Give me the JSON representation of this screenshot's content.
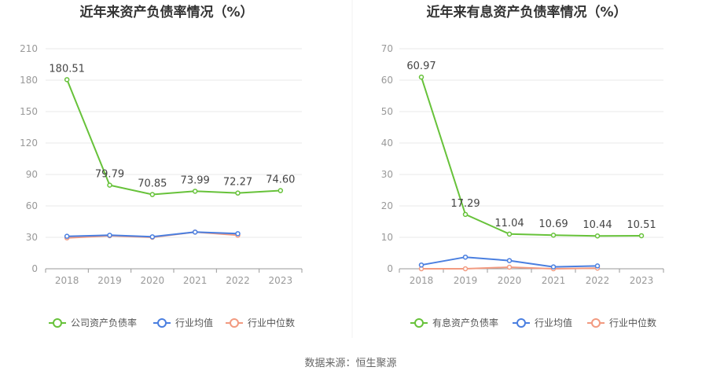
{
  "footer": {
    "source": "数据来源：恒生聚源"
  },
  "chart_data": [
    {
      "type": "line",
      "title": "近年来资产负债率情况（%）",
      "x": [
        "2018",
        "2019",
        "2020",
        "2021",
        "2022",
        "2023"
      ],
      "yticks": [
        "0",
        "30",
        "60",
        "90",
        "120",
        "150",
        "180",
        "210"
      ],
      "ylim": [
        0,
        210
      ],
      "grid": true,
      "legend_placement": "bottom",
      "series": [
        {
          "name": "公司资产负债率",
          "color": "#67c23a",
          "values": [
            180.51,
            79.79,
            70.85,
            73.99,
            72.27,
            74.6
          ],
          "labels": [
            "180.51",
            "79.79",
            "70.85",
            "73.99",
            "72.27",
            "74.60"
          ]
        },
        {
          "name": "行业均值",
          "color": "#4a7fe0",
          "values": [
            31.0,
            32.0,
            30.5,
            35.0,
            33.5,
            null
          ],
          "labels": []
        },
        {
          "name": "行业中位数",
          "color": "#f29a80",
          "values": [
            29.5,
            31.5,
            30.0,
            35.0,
            32.0,
            null
          ],
          "labels": []
        }
      ]
    },
    {
      "type": "line",
      "title": "近年来有息资产负债率情况（%）",
      "x": [
        "2018",
        "2019",
        "2020",
        "2021",
        "2022",
        "2023"
      ],
      "yticks": [
        "0",
        "10",
        "20",
        "30",
        "40",
        "50",
        "60",
        "70"
      ],
      "ylim": [
        0,
        70
      ],
      "grid": true,
      "legend_placement": "bottom",
      "series": [
        {
          "name": "有息资产负债率",
          "color": "#67c23a",
          "values": [
            60.97,
            17.29,
            11.04,
            10.69,
            10.44,
            10.51
          ],
          "labels": [
            "60.97",
            "17.29",
            "11.04",
            "10.69",
            "10.44",
            "10.51"
          ]
        },
        {
          "name": "行业均值",
          "color": "#4a7fe0",
          "values": [
            1.2,
            3.7,
            2.6,
            0.6,
            0.9,
            null
          ],
          "labels": []
        },
        {
          "name": "行业中位数",
          "color": "#f29a80",
          "values": [
            0.0,
            0.0,
            0.5,
            0.0,
            0.2,
            null
          ],
          "labels": []
        }
      ]
    }
  ]
}
